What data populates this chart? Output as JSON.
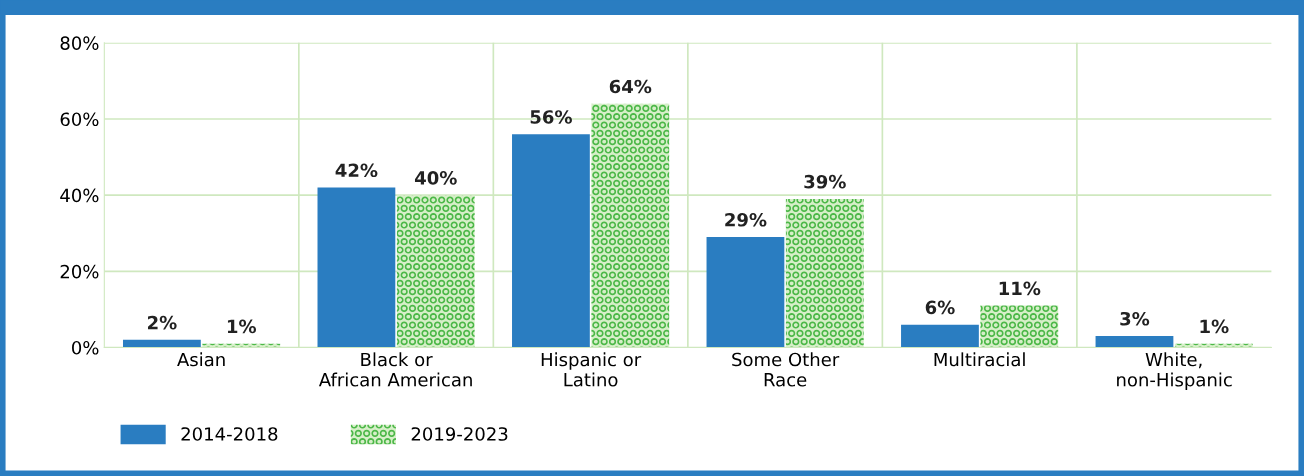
{
  "chart_data": {
    "type": "bar",
    "categories": [
      "Asian",
      "Black or\nAfrican American",
      "Hispanic or\nLatino",
      "Some Other\nRace",
      "Multiracial",
      "White,\nnon-Hispanic"
    ],
    "series": [
      {
        "name": "2014-2018",
        "color": "#2a7dc1",
        "values": [
          2,
          42,
          56,
          29,
          6,
          3
        ],
        "value_labels": [
          "2%",
          "42%",
          "56%",
          "29%",
          "6%",
          "3%"
        ]
      },
      {
        "name": "2019-2023",
        "color": "#4cb848",
        "values": [
          1,
          40,
          64,
          39,
          11,
          1
        ],
        "value_labels": [
          "1%",
          "40%",
          "64%",
          "39%",
          "11%",
          "1%"
        ]
      }
    ],
    "ylim": [
      0,
      80
    ],
    "yticks": [
      {
        "value": 0,
        "label": "0%"
      },
      {
        "value": 20,
        "label": "20%"
      },
      {
        "value": 40,
        "label": "40%"
      },
      {
        "value": 60,
        "label": "60%"
      },
      {
        "value": 80,
        "label": "80%"
      }
    ],
    "grid": true,
    "legend": "bottom left"
  }
}
